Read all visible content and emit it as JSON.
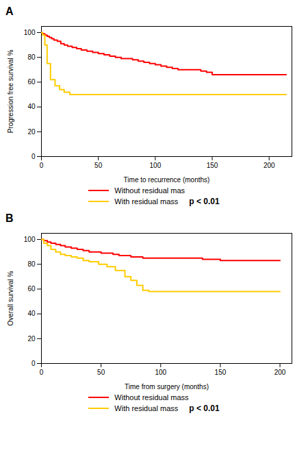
{
  "chart_data": [
    {
      "type": "step",
      "title": "A",
      "xlabel": "Time to recurrence (months)",
      "ylabel": "Progression free survival %",
      "xlim": [
        0,
        220
      ],
      "ylim": [
        0,
        105
      ],
      "xticks": [
        0,
        50,
        100,
        150,
        200
      ],
      "yticks": [
        0,
        20,
        40,
        60,
        80,
        100
      ],
      "grid": false,
      "legend": "center",
      "series": [
        {
          "name": "Without residual mas",
          "color": "#FF0000",
          "x": [
            0,
            1,
            3,
            5,
            7,
            9,
            11,
            14,
            17,
            20,
            23,
            27,
            31,
            35,
            40,
            45,
            50,
            55,
            60,
            65,
            70,
            75,
            80,
            85,
            90,
            95,
            100,
            105,
            110,
            115,
            120,
            125,
            130,
            135,
            140,
            145,
            150,
            160,
            170,
            180,
            190,
            200,
            215
          ],
          "values": [
            100,
            99,
            98,
            97,
            96,
            95,
            94,
            93,
            91,
            90,
            89,
            88,
            87,
            86,
            85,
            84,
            83,
            82,
            81,
            80,
            79,
            79,
            78,
            77,
            76,
            75,
            74,
            73,
            72,
            71,
            70,
            70,
            70,
            70,
            69,
            68,
            66,
            66,
            66,
            66,
            66,
            66,
            66
          ]
        },
        {
          "name": "With residual mass",
          "color": "#FFCC00",
          "x": [
            0,
            1,
            3,
            5,
            8,
            12,
            16,
            20,
            25,
            30,
            40,
            60,
            80,
            100,
            120,
            140,
            160,
            180,
            200,
            215
          ],
          "values": [
            100,
            98,
            90,
            75,
            62,
            57,
            54,
            52,
            50,
            50,
            50,
            50,
            50,
            50,
            50,
            50,
            50,
            50,
            50,
            50
          ]
        }
      ],
      "annotations": [
        "p < 0.01"
      ]
    },
    {
      "type": "step",
      "title": "B",
      "xlabel": "Time from surgery (months)",
      "ylabel": "Overall survival %",
      "xlim": [
        0,
        210
      ],
      "ylim": [
        0,
        105
      ],
      "xticks": [
        0,
        50,
        100,
        150,
        200
      ],
      "yticks": [
        0,
        20,
        40,
        60,
        80,
        100
      ],
      "grid": false,
      "legend": "center",
      "series": [
        {
          "name": "Without residual mass",
          "color": "#FF0000",
          "x": [
            0,
            2,
            5,
            8,
            12,
            16,
            20,
            25,
            30,
            35,
            40,
            45,
            50,
            55,
            60,
            65,
            70,
            75,
            80,
            85,
            90,
            95,
            100,
            110,
            120,
            130,
            135,
            140,
            145,
            150,
            160,
            170,
            180,
            190,
            200
          ],
          "values": [
            100,
            99,
            98,
            97,
            96,
            95,
            94,
            93,
            92,
            91,
            90,
            90,
            89,
            89,
            88,
            87,
            87,
            86,
            86,
            85,
            85,
            85,
            85,
            85,
            85,
            85,
            84,
            84,
            84,
            83,
            83,
            83,
            83,
            83,
            83
          ]
        },
        {
          "name": "With residual mass",
          "color": "#FFCC00",
          "x": [
            0,
            2,
            5,
            8,
            12,
            16,
            20,
            25,
            30,
            35,
            40,
            48,
            55,
            62,
            70,
            75,
            80,
            85,
            90,
            100,
            120,
            140,
            160,
            180,
            200
          ],
          "values": [
            100,
            97,
            95,
            92,
            90,
            88,
            87,
            86,
            85,
            83,
            82,
            80,
            78,
            75,
            70,
            67,
            63,
            59,
            58,
            58,
            58,
            58,
            58,
            58,
            58
          ]
        }
      ],
      "annotations": [
        "p < 0.01"
      ]
    }
  ]
}
